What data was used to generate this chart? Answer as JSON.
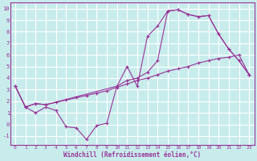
{
  "xlabel": "Windchill (Refroidissement éolien,°C)",
  "xlim": [
    -0.5,
    23.5
  ],
  "ylim": [
    -1.8,
    10.5
  ],
  "yticks": [
    -1,
    0,
    1,
    2,
    3,
    4,
    5,
    6,
    7,
    8,
    9,
    10
  ],
  "xticks": [
    0,
    1,
    2,
    3,
    4,
    5,
    6,
    7,
    8,
    9,
    10,
    11,
    12,
    13,
    14,
    15,
    16,
    17,
    18,
    19,
    20,
    21,
    22,
    23
  ],
  "background_color": "#c8ecec",
  "grid_color": "#ffffff",
  "line_color": "#993399",
  "line1_x": [
    0,
    1,
    2,
    3,
    4,
    5,
    6,
    7,
    8,
    9,
    10,
    11,
    12,
    13,
    14,
    15,
    16,
    17,
    18,
    19,
    20,
    21,
    22,
    23
  ],
  "line1_y": [
    3.3,
    1.5,
    1.0,
    1.5,
    1.2,
    -0.2,
    -0.3,
    -1.3,
    -0.1,
    0.1,
    3.3,
    5.0,
    3.3,
    7.6,
    8.5,
    9.8,
    9.9,
    9.5,
    9.3,
    9.4,
    7.8,
    6.5,
    5.5,
    4.3
  ],
  "line2_x": [
    0,
    1,
    2,
    3,
    4,
    5,
    6,
    7,
    8,
    9,
    10,
    11,
    12,
    13,
    14,
    15,
    16,
    17,
    18,
    19,
    20,
    21,
    22,
    23
  ],
  "line2_y": [
    3.3,
    1.5,
    1.8,
    1.7,
    1.9,
    2.1,
    2.3,
    2.5,
    2.7,
    2.9,
    3.2,
    3.5,
    3.8,
    4.0,
    4.3,
    4.6,
    4.8,
    5.0,
    5.3,
    5.5,
    5.7,
    5.8,
    6.0,
    4.3
  ],
  "line3_x": [
    0,
    1,
    2,
    3,
    10,
    11,
    12,
    13,
    14,
    15,
    16,
    17,
    18,
    19,
    20,
    21,
    22,
    23
  ],
  "line3_y": [
    3.3,
    1.5,
    1.8,
    1.7,
    3.3,
    3.8,
    4.0,
    4.5,
    5.5,
    9.8,
    9.9,
    9.5,
    9.3,
    9.4,
    7.8,
    6.5,
    5.5,
    4.3
  ]
}
